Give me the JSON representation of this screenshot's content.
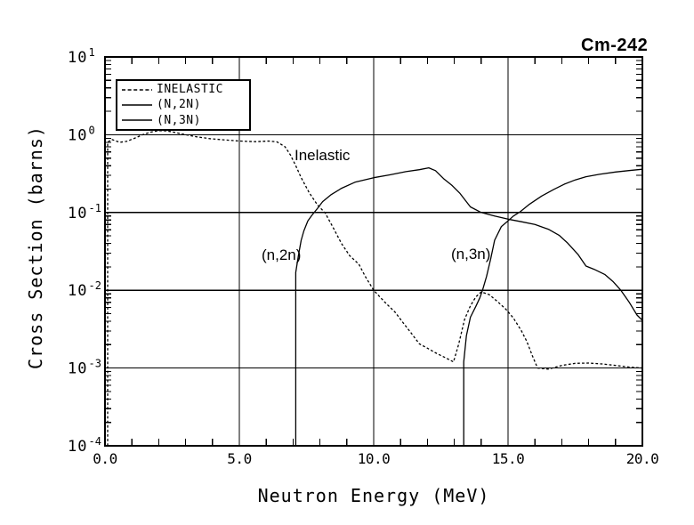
{
  "window": {
    "title": "Cm-242"
  },
  "labels": {
    "inelastic": "Inelastic",
    "n2n": "(n,2n)",
    "n3n": "(n,3n)"
  },
  "chart_data": {
    "type": "line",
    "title": "Cm-242",
    "xlabel": "Neutron Energy (MeV)",
    "ylabel": "Cross Section (barns)",
    "x_scale": "linear",
    "y_scale": "log",
    "xlim": [
      0,
      20
    ],
    "ylim_log": [
      -4,
      1
    ],
    "grid": "major",
    "x_ticks": [
      0,
      5,
      10,
      15,
      20
    ],
    "x_tick_labels": [
      "0.0",
      "5.0",
      "10.0",
      "15.0",
      "20.0"
    ],
    "x_minor_tick_step": 1,
    "y_tick_exponents": [
      1,
      0,
      -1,
      -2,
      -3,
      -4
    ],
    "legend": {
      "position": "top-left",
      "items": [
        {
          "label": "INELASTIC",
          "line": "dashed"
        },
        {
          "label": "(N,2N)",
          "line": "solid"
        },
        {
          "label": "(N,3N)",
          "line": "solid"
        }
      ]
    },
    "series": [
      {
        "name": "INELASTIC",
        "line": "dashed",
        "points": [
          [
            0.1,
            0.0001
          ],
          [
            0.1,
            0.8
          ],
          [
            0.25,
            0.87
          ],
          [
            0.55,
            0.8
          ],
          [
            0.8,
            0.82
          ],
          [
            1.1,
            0.9
          ],
          [
            1.4,
            1.0
          ],
          [
            1.7,
            1.08
          ],
          [
            2.0,
            1.13
          ],
          [
            2.3,
            1.12
          ],
          [
            2.6,
            1.07
          ],
          [
            3.0,
            1.0
          ],
          [
            3.4,
            0.94
          ],
          [
            3.9,
            0.89
          ],
          [
            4.4,
            0.86
          ],
          [
            5.0,
            0.83
          ],
          [
            5.6,
            0.815
          ],
          [
            6.1,
            0.83
          ],
          [
            6.4,
            0.81
          ],
          [
            6.7,
            0.7
          ],
          [
            6.9,
            0.55
          ],
          [
            7.1,
            0.4
          ],
          [
            7.3,
            0.28
          ],
          [
            7.6,
            0.18
          ],
          [
            7.9,
            0.126
          ],
          [
            8.2,
            0.098
          ],
          [
            8.5,
            0.063
          ],
          [
            8.8,
            0.04
          ],
          [
            9.1,
            0.028
          ],
          [
            9.45,
            0.0215
          ],
          [
            9.7,
            0.0148
          ],
          [
            10.0,
            0.01
          ],
          [
            10.4,
            0.0071
          ],
          [
            10.8,
            0.0052
          ],
          [
            11.1,
            0.0038
          ],
          [
            11.4,
            0.0028
          ],
          [
            11.7,
            0.00205
          ],
          [
            12.0,
            0.0018
          ],
          [
            12.3,
            0.00157
          ],
          [
            12.65,
            0.00137
          ],
          [
            12.97,
            0.0012
          ],
          [
            13.16,
            0.002
          ],
          [
            13.38,
            0.0042
          ],
          [
            13.6,
            0.0063
          ],
          [
            13.8,
            0.0082
          ],
          [
            14.0,
            0.0095
          ],
          [
            14.3,
            0.0088
          ],
          [
            14.6,
            0.0072
          ],
          [
            14.9,
            0.0058
          ],
          [
            15.2,
            0.0044
          ],
          [
            15.5,
            0.003
          ],
          [
            15.7,
            0.0022
          ],
          [
            15.9,
            0.00145
          ],
          [
            16.1,
            0.001
          ],
          [
            16.5,
            0.00097
          ],
          [
            17.0,
            0.00108
          ],
          [
            17.5,
            0.00115
          ],
          [
            18.0,
            0.00116
          ],
          [
            18.5,
            0.00113
          ],
          [
            19.0,
            0.00108
          ],
          [
            19.5,
            0.00103
          ],
          [
            20.0,
            0.001
          ]
        ]
      },
      {
        "name": "(N,2N)",
        "line": "solid",
        "points": [
          [
            7.1,
            0.0001
          ],
          [
            7.1,
            0.017
          ],
          [
            7.2,
            0.028
          ],
          [
            7.3,
            0.044
          ],
          [
            7.4,
            0.058
          ],
          [
            7.55,
            0.078
          ],
          [
            7.7,
            0.092
          ],
          [
            7.9,
            0.112
          ],
          [
            8.1,
            0.138
          ],
          [
            8.4,
            0.168
          ],
          [
            8.8,
            0.205
          ],
          [
            9.3,
            0.245
          ],
          [
            10.0,
            0.28
          ],
          [
            10.6,
            0.305
          ],
          [
            11.2,
            0.335
          ],
          [
            11.7,
            0.355
          ],
          [
            12.05,
            0.375
          ],
          [
            12.3,
            0.345
          ],
          [
            12.6,
            0.273
          ],
          [
            12.9,
            0.225
          ],
          [
            13.2,
            0.178
          ],
          [
            13.6,
            0.118
          ],
          [
            14.0,
            0.1
          ],
          [
            14.5,
            0.09
          ],
          [
            15.0,
            0.082
          ],
          [
            15.5,
            0.076
          ],
          [
            16.0,
            0.07
          ],
          [
            16.5,
            0.061
          ],
          [
            16.9,
            0.051
          ],
          [
            17.2,
            0.041
          ],
          [
            17.6,
            0.029
          ],
          [
            17.9,
            0.0205
          ],
          [
            18.2,
            0.0186
          ],
          [
            18.6,
            0.016
          ],
          [
            18.9,
            0.013
          ],
          [
            19.2,
            0.01
          ],
          [
            19.5,
            0.0071
          ],
          [
            19.8,
            0.0048
          ],
          [
            20.0,
            0.0041
          ]
        ]
      },
      {
        "name": "(N,3N)",
        "line": "solid",
        "points": [
          [
            13.35,
            0.0001
          ],
          [
            13.35,
            0.0012
          ],
          [
            13.45,
            0.0026
          ],
          [
            13.6,
            0.0045
          ],
          [
            13.8,
            0.0062
          ],
          [
            13.95,
            0.008
          ],
          [
            14.05,
            0.01
          ],
          [
            14.2,
            0.015
          ],
          [
            14.35,
            0.025
          ],
          [
            14.5,
            0.044
          ],
          [
            14.75,
            0.066
          ],
          [
            15.0,
            0.078
          ],
          [
            15.2,
            0.09
          ],
          [
            15.45,
            0.102
          ],
          [
            15.8,
            0.128
          ],
          [
            16.25,
            0.163
          ],
          [
            16.7,
            0.198
          ],
          [
            17.1,
            0.232
          ],
          [
            17.5,
            0.262
          ],
          [
            17.9,
            0.288
          ],
          [
            18.4,
            0.31
          ],
          [
            19.0,
            0.332
          ],
          [
            19.5,
            0.346
          ],
          [
            20.0,
            0.36
          ]
        ]
      }
    ],
    "annotations": [
      {
        "text": "Inelastic",
        "x": 7.05,
        "y": 0.5
      },
      {
        "text": "(n,2n)",
        "x": 5.86,
        "y": 0.025
      },
      {
        "text": "(n,3n)",
        "x": 12.9,
        "y": 0.026
      }
    ]
  }
}
